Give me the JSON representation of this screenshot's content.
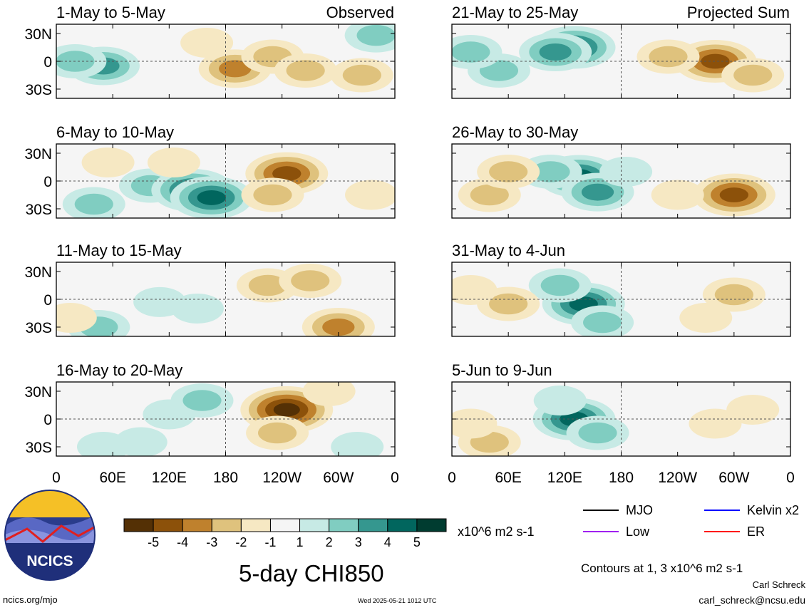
{
  "chart_data": {
    "type": "heatmap",
    "title": "5-day CHI850",
    "units": "x10^6 m2 s-1",
    "contour_note": "Contours at 1, 3 x10^6 m2 s-1",
    "column_headers": [
      "Observed",
      "Projected Sum"
    ],
    "x_ticks": [
      "0",
      "60E",
      "120E",
      "180",
      "120W",
      "60W",
      "0"
    ],
    "y_ticks": [
      "30N",
      "0",
      "30S"
    ],
    "x_range_deg_east": [
      0,
      360
    ],
    "y_range_deg": [
      -40,
      40
    ],
    "panels": [
      {
        "period": "1-May to 5-May",
        "column": "Observed",
        "blobs": [
          {
            "lon": 50,
            "lat": -5,
            "v": 3
          },
          {
            "lon": 20,
            "lat": 0,
            "v": 2
          },
          {
            "lon": 160,
            "lat": 20,
            "v": -1
          },
          {
            "lon": 190,
            "lat": -8,
            "v": -3
          },
          {
            "lon": 230,
            "lat": 5,
            "v": -2
          },
          {
            "lon": 265,
            "lat": -10,
            "v": -2
          },
          {
            "lon": 325,
            "lat": -15,
            "v": -2
          },
          {
            "lon": 340,
            "lat": 28,
            "v": 2
          }
        ]
      },
      {
        "period": "6-May to 10-May",
        "column": "Observed",
        "blobs": [
          {
            "lon": 100,
            "lat": -5,
            "v": 2
          },
          {
            "lon": 145,
            "lat": -10,
            "v": 4
          },
          {
            "lon": 165,
            "lat": -18,
            "v": 4
          },
          {
            "lon": 125,
            "lat": 20,
            "v": -1
          },
          {
            "lon": 245,
            "lat": 8,
            "v": -4
          },
          {
            "lon": 230,
            "lat": -15,
            "v": -2
          },
          {
            "lon": 40,
            "lat": -25,
            "v": 2
          },
          {
            "lon": 55,
            "lat": 20,
            "v": -1
          },
          {
            "lon": 335,
            "lat": -15,
            "v": -1
          }
        ]
      },
      {
        "period": "11-May to 15-May",
        "column": "Observed",
        "blobs": [
          {
            "lon": 110,
            "lat": -3,
            "v": 1
          },
          {
            "lon": 150,
            "lat": -10,
            "v": 1
          },
          {
            "lon": 45,
            "lat": -30,
            "v": 2
          },
          {
            "lon": 225,
            "lat": 15,
            "v": -2
          },
          {
            "lon": 270,
            "lat": 20,
            "v": -2
          },
          {
            "lon": 300,
            "lat": -30,
            "v": -3
          },
          {
            "lon": 15,
            "lat": -20,
            "v": -1
          }
        ]
      },
      {
        "period": "16-May to 20-May",
        "column": "Observed",
        "blobs": [
          {
            "lon": 120,
            "lat": 5,
            "v": 1
          },
          {
            "lon": 155,
            "lat": 20,
            "v": 2
          },
          {
            "lon": 245,
            "lat": 10,
            "v": -5
          },
          {
            "lon": 235,
            "lat": -15,
            "v": -2
          },
          {
            "lon": 50,
            "lat": -30,
            "v": 1
          },
          {
            "lon": 90,
            "lat": -25,
            "v": 1
          },
          {
            "lon": 320,
            "lat": -30,
            "v": 1
          },
          {
            "lon": 290,
            "lat": 30,
            "v": -1
          }
        ]
      },
      {
        "period": "21-May to 25-May",
        "column": "Projected Sum",
        "blobs": [
          {
            "lon": 130,
            "lat": 15,
            "v": 4
          },
          {
            "lon": 110,
            "lat": 10,
            "v": 3
          },
          {
            "lon": 50,
            "lat": -10,
            "v": 2
          },
          {
            "lon": 20,
            "lat": 10,
            "v": 2
          },
          {
            "lon": 280,
            "lat": 0,
            "v": -4
          },
          {
            "lon": 230,
            "lat": 5,
            "v": -2
          },
          {
            "lon": 320,
            "lat": -15,
            "v": -2
          }
        ]
      },
      {
        "period": "26-May to 30-May",
        "column": "Projected Sum",
        "blobs": [
          {
            "lon": 135,
            "lat": 5,
            "v": 4
          },
          {
            "lon": 155,
            "lat": -12,
            "v": 3
          },
          {
            "lon": 105,
            "lat": 10,
            "v": 2
          },
          {
            "lon": 185,
            "lat": 10,
            "v": 1
          },
          {
            "lon": 300,
            "lat": -15,
            "v": -4
          },
          {
            "lon": 40,
            "lat": -15,
            "v": -2
          },
          {
            "lon": 60,
            "lat": 10,
            "v": -2
          },
          {
            "lon": 240,
            "lat": -15,
            "v": -1
          }
        ]
      },
      {
        "period": "31-May to 4-Jun",
        "column": "Projected Sum",
        "blobs": [
          {
            "lon": 140,
            "lat": -5,
            "v": 4
          },
          {
            "lon": 115,
            "lat": 15,
            "v": 2
          },
          {
            "lon": 160,
            "lat": -25,
            "v": 2
          },
          {
            "lon": 60,
            "lat": -5,
            "v": -2
          },
          {
            "lon": 20,
            "lat": 10,
            "v": -1
          },
          {
            "lon": 300,
            "lat": 5,
            "v": -2
          },
          {
            "lon": 270,
            "lat": -20,
            "v": -1
          }
        ]
      },
      {
        "period": "5-Jun to 9-Jun",
        "column": "Projected Sum",
        "blobs": [
          {
            "lon": 130,
            "lat": 0,
            "v": 4
          },
          {
            "lon": 155,
            "lat": -15,
            "v": 2
          },
          {
            "lon": 115,
            "lat": 20,
            "v": 1
          },
          {
            "lon": 40,
            "lat": -25,
            "v": -2
          },
          {
            "lon": 20,
            "lat": -5,
            "v": -1
          },
          {
            "lon": 280,
            "lat": -5,
            "v": -1
          },
          {
            "lon": 320,
            "lat": 10,
            "v": -1
          }
        ]
      }
    ],
    "colorbar": {
      "labels": [
        "-5",
        "-4",
        "-3",
        "-2",
        "-1",
        "1",
        "2",
        "3",
        "4",
        "5"
      ],
      "colors": [
        "#543005",
        "#8c510a",
        "#bf812d",
        "#dfc27d",
        "#f6e8c3",
        "#f5f5f5",
        "#c7eae5",
        "#80cdc1",
        "#35978f",
        "#01665e",
        "#003c30"
      ]
    },
    "legend": [
      {
        "name": "MJO",
        "color": "#000000"
      },
      {
        "name": "Kelvin x2",
        "color": "#0000ff"
      },
      {
        "name": "Low",
        "color": "#a020f0"
      },
      {
        "name": "ER",
        "color": "#ff0000"
      }
    ]
  },
  "logo_text": "NCICS",
  "footer": {
    "left": "ncics.org/mjo",
    "timestamp": "Wed 2025-05-21 1012 UTC",
    "author": "Carl Schreck",
    "email": "carl_schreck@ncsu.edu"
  }
}
